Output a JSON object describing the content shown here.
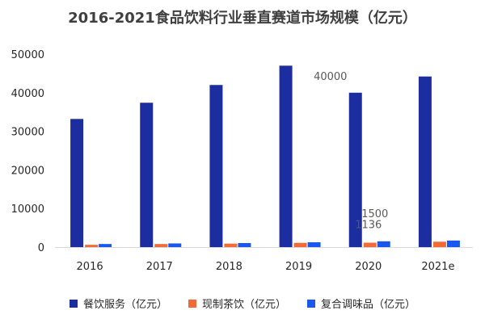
{
  "chart_data": {
    "type": "bar",
    "title": "2016-2021食品饮料行业垂直赛道市场规模（亿元）",
    "categories": [
      "2016",
      "2017",
      "2018",
      "2019",
      "2020",
      "2021e"
    ],
    "ylim": [
      0,
      50000
    ],
    "yticks": [
      0,
      10000,
      20000,
      30000,
      40000,
      50000
    ],
    "xlabel": "",
    "ylabel": "",
    "grid": false,
    "legend_position": "bottom",
    "series": [
      {
        "name": "餐饮服务（亿元）",
        "color": "#1c2da0",
        "values": [
          33200,
          37400,
          42000,
          47000,
          40000,
          44200
        ]
      },
      {
        "name": "现制茶饮（亿元）",
        "color": "#f26a35",
        "values": [
          600,
          800,
          900,
          1100,
          1136,
          1400
        ]
      },
      {
        "name": "复合调味品（亿元）",
        "color": "#1a57f0",
        "values": [
          800,
          950,
          1050,
          1250,
          1500,
          1700
        ]
      }
    ],
    "annotations": [
      {
        "text": "40000",
        "category": "2020",
        "series": 0
      },
      {
        "text": "1136",
        "category": "2020",
        "series": 1
      },
      {
        "text": "1500",
        "category": "2020",
        "series": 2
      }
    ]
  }
}
